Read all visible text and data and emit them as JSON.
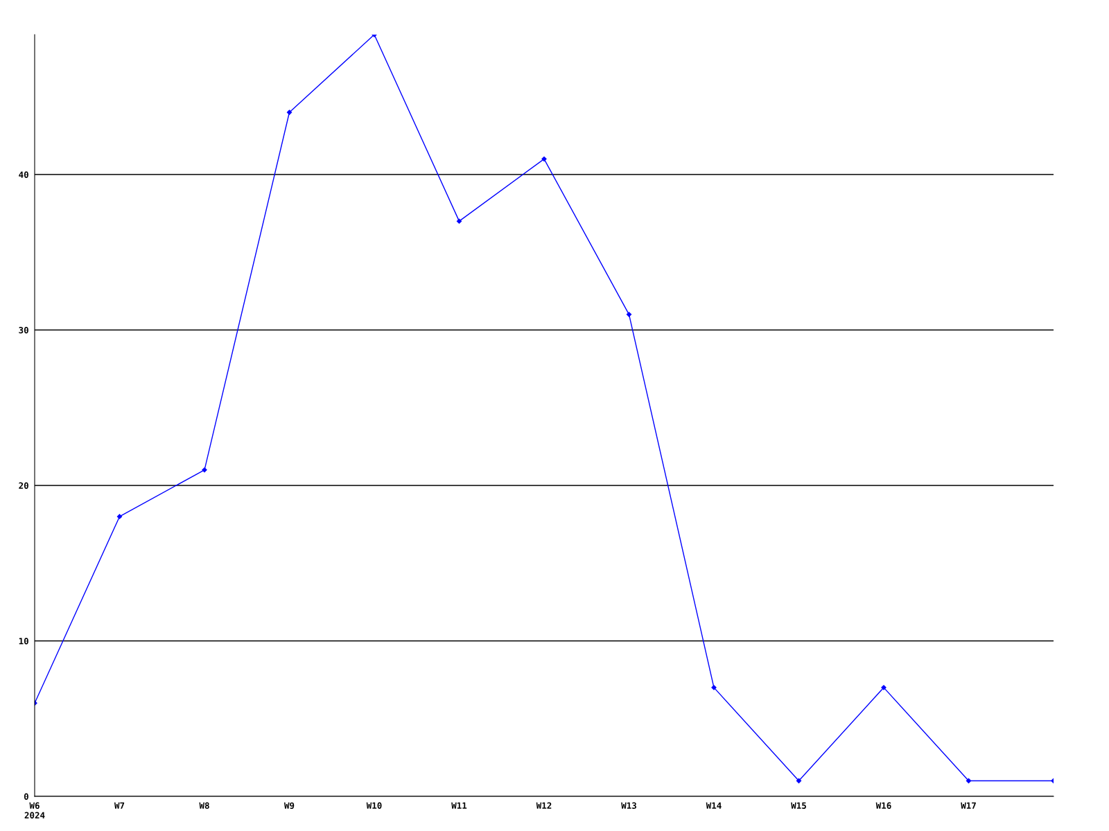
{
  "chart_data": {
    "type": "line",
    "categories": [
      "W6\n2024",
      "W7",
      "W8",
      "W9",
      "W10",
      "W11",
      "W12",
      "W13",
      "W14",
      "W15",
      "W16",
      "W17",
      null
    ],
    "series": [
      {
        "color": "#0000ff",
        "values": [
          6,
          18,
          21,
          44,
          49,
          37,
          41,
          31,
          7,
          1,
          7,
          1,
          1
        ]
      }
    ],
    "ylim": [
      0,
      49
    ],
    "yticks": [
      0,
      10,
      20,
      30,
      40
    ],
    "grid": "y",
    "marker": "diamond",
    "line_style": "solid"
  }
}
